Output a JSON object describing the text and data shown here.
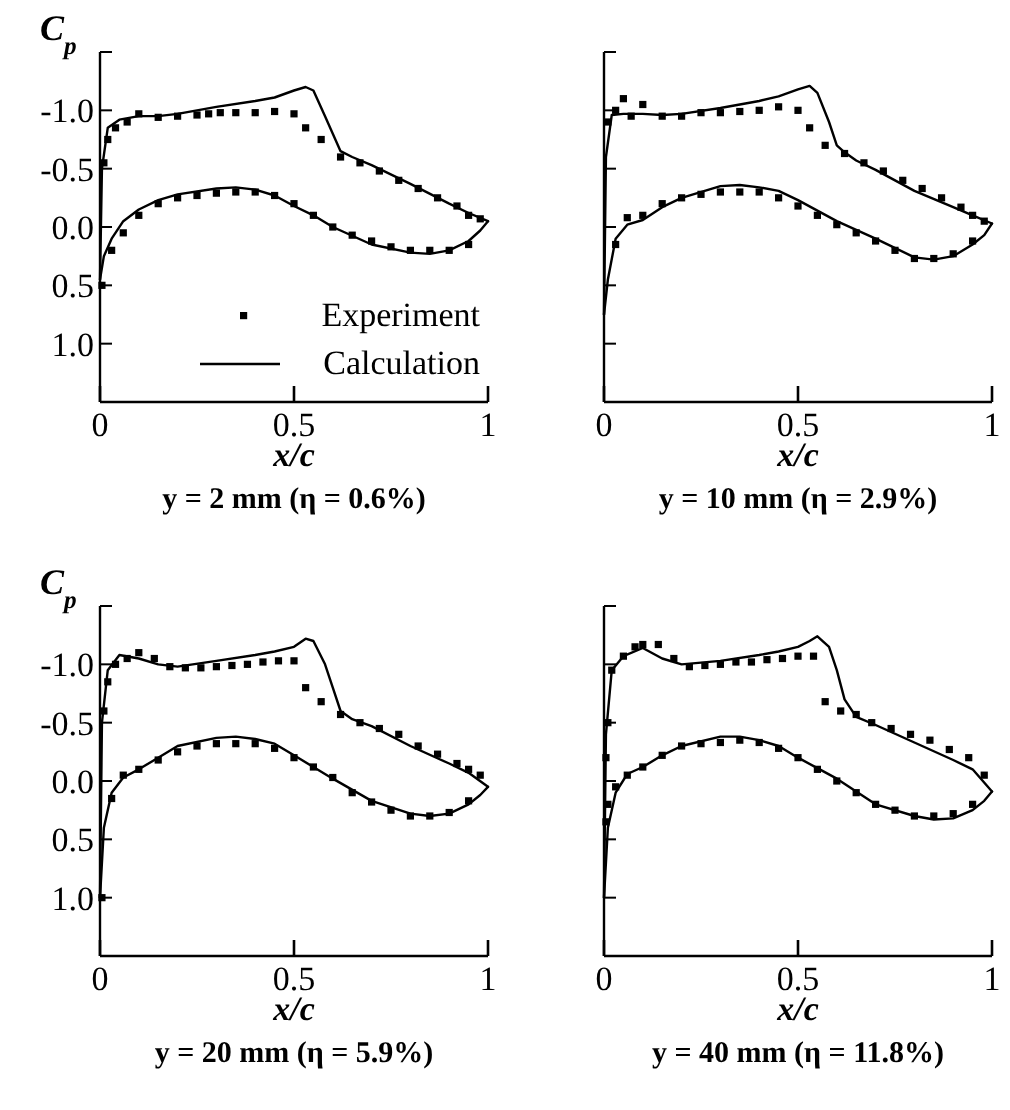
{
  "chart_data": [
    {
      "type": "line",
      "title": "y = 2 mm (η = 0.6%)",
      "xlabel": "x/c",
      "ylabel": "C$_{p}$",
      "xlim": [
        0,
        1
      ],
      "ylim": [
        1.5,
        -1.5
      ],
      "xticks": [
        0,
        0.5,
        1
      ],
      "yticks": [
        {
          "value": -1.5,
          "label": null
        },
        {
          "value": -1,
          "label": "-1.0"
        },
        {
          "value": -0.5,
          "label": "-0.5"
        },
        {
          "value": 0,
          "label": "0.0"
        },
        {
          "value": 0.5,
          "label": "0.5"
        },
        {
          "value": 1,
          "label": "1.0"
        }
      ],
      "legend": "bottom right",
      "series": [
        {
          "name": "Experiment",
          "type": "scatter",
          "marker": "square",
          "color": "#000000",
          "x": [
            0.01,
            0.02,
            0.04,
            0.07,
            0.1,
            0.15,
            0.2,
            0.25,
            0.28,
            0.31,
            0.35,
            0.4,
            0.45,
            0.5,
            0.53,
            0.57,
            0.62,
            0.67,
            0.72,
            0.77,
            0.82,
            0.87,
            0.92,
            0.95,
            0.98,
            0.005,
            0.03,
            0.06,
            0.1,
            0.15,
            0.2,
            0.25,
            0.3,
            0.35,
            0.4,
            0.45,
            0.5,
            0.55,
            0.6,
            0.65,
            0.7,
            0.75,
            0.8,
            0.85,
            0.9,
            0.95
          ],
          "values": [
            -0.55,
            -0.75,
            -0.85,
            -0.9,
            -0.97,
            -0.94,
            -0.95,
            -0.96,
            -0.97,
            -0.98,
            -0.98,
            -0.98,
            -0.99,
            -0.97,
            -0.85,
            -0.75,
            -0.6,
            -0.55,
            -0.48,
            -0.4,
            -0.33,
            -0.25,
            -0.18,
            -0.1,
            -0.07,
            0.5,
            0.2,
            0.05,
            -0.1,
            -0.2,
            -0.25,
            -0.27,
            -0.29,
            -0.3,
            -0.3,
            -0.27,
            -0.2,
            -0.1,
            0.0,
            0.07,
            0.12,
            0.17,
            0.2,
            0.2,
            0.2,
            0.15
          ]
        },
        {
          "name": "Calculation",
          "type": "line",
          "color": "#000000",
          "x": [
            0,
            0.005,
            0.02,
            0.05,
            0.1,
            0.15,
            0.2,
            0.3,
            0.4,
            0.45,
            0.5,
            0.53,
            0.55,
            0.58,
            0.6,
            0.62,
            0.65,
            0.7,
            0.8,
            0.9,
            0.95,
            1
          ],
          "values": [
            0.45,
            -0.5,
            -0.85,
            -0.92,
            -0.95,
            -0.95,
            -0.97,
            -1.03,
            -1.08,
            -1.11,
            -1.17,
            -1.2,
            -1.17,
            -0.95,
            -0.8,
            -0.65,
            -0.6,
            -0.53,
            -0.37,
            -0.2,
            -0.12,
            -0.05
          ]
        },
        {
          "type": "line",
          "color": "#000000",
          "x": [
            0,
            0.01,
            0.03,
            0.06,
            0.1,
            0.15,
            0.2,
            0.3,
            0.35,
            0.4,
            0.45,
            0.5,
            0.55,
            0.6,
            0.7,
            0.8,
            0.85,
            0.9,
            0.95,
            0.98,
            1
          ],
          "values": [
            0.45,
            0.25,
            0.1,
            -0.05,
            -0.15,
            -0.23,
            -0.28,
            -0.33,
            -0.34,
            -0.32,
            -0.27,
            -0.18,
            -0.1,
            0.0,
            0.15,
            0.22,
            0.23,
            0.2,
            0.12,
            0.03,
            -0.05
          ]
        }
      ]
    },
    {
      "type": "line",
      "title": "y = 10 mm (η = 2.9%)",
      "xlabel": "x/c",
      "xlim": [
        0,
        1
      ],
      "ylim": [
        1.5,
        -1.5
      ],
      "tick_labels": "x",
      "xticks": [
        0,
        0.5,
        1
      ],
      "yticks": [
        {
          "value": -1.5,
          "label": null
        },
        {
          "value": -1,
          "label": null
        },
        {
          "value": -0.5,
          "label": null
        },
        {
          "value": 0,
          "label": null
        },
        {
          "value": 0.5,
          "label": null
        },
        {
          "value": 1,
          "label": null
        }
      ],
      "series": [
        {
          "type": "scatter",
          "marker": "square",
          "color": "#000000",
          "x": [
            0.01,
            0.03,
            0.05,
            0.07,
            0.1,
            0.15,
            0.2,
            0.25,
            0.3,
            0.35,
            0.4,
            0.45,
            0.5,
            0.53,
            0.57,
            0.62,
            0.67,
            0.72,
            0.77,
            0.82,
            0.87,
            0.92,
            0.95,
            0.98,
            0.03,
            0.06,
            0.1,
            0.15,
            0.2,
            0.25,
            0.3,
            0.35,
            0.4,
            0.45,
            0.5,
            0.55,
            0.6,
            0.65,
            0.7,
            0.75,
            0.8,
            0.85,
            0.9,
            0.95
          ],
          "values": [
            -0.9,
            -1.0,
            -1.1,
            -0.95,
            -1.05,
            -0.95,
            -0.95,
            -0.98,
            -0.98,
            -0.99,
            -1.0,
            -1.03,
            -1.0,
            -0.85,
            -0.7,
            -0.63,
            -0.55,
            -0.48,
            -0.4,
            -0.33,
            -0.25,
            -0.17,
            -0.1,
            -0.05,
            0.15,
            -0.08,
            -0.1,
            -0.2,
            -0.25,
            -0.28,
            -0.3,
            -0.3,
            -0.3,
            -0.25,
            -0.18,
            -0.1,
            -0.02,
            0.05,
            0.12,
            0.2,
            0.27,
            0.27,
            0.23,
            0.12
          ]
        },
        {
          "type": "line",
          "color": "#000000",
          "x": [
            0,
            0.005,
            0.02,
            0.05,
            0.1,
            0.15,
            0.2,
            0.3,
            0.4,
            0.45,
            0.5,
            0.53,
            0.55,
            0.58,
            0.6,
            0.62,
            0.65,
            0.7,
            0.8,
            0.9,
            0.95,
            1
          ],
          "values": [
            0.75,
            -0.6,
            -0.96,
            -0.97,
            -0.97,
            -0.96,
            -0.97,
            -1.02,
            -1.08,
            -1.12,
            -1.18,
            -1.21,
            -1.15,
            -0.9,
            -0.7,
            -0.64,
            -0.57,
            -0.49,
            -0.31,
            -0.17,
            -0.1,
            -0.03
          ]
        },
        {
          "type": "line",
          "color": "#000000",
          "x": [
            0,
            0.01,
            0.03,
            0.06,
            0.1,
            0.15,
            0.2,
            0.3,
            0.35,
            0.4,
            0.45,
            0.5,
            0.55,
            0.6,
            0.7,
            0.8,
            0.85,
            0.9,
            0.95,
            0.98,
            1
          ],
          "values": [
            0.75,
            0.45,
            0.1,
            -0.02,
            -0.06,
            -0.17,
            -0.25,
            -0.35,
            -0.36,
            -0.34,
            -0.31,
            -0.23,
            -0.14,
            -0.05,
            0.1,
            0.26,
            0.28,
            0.25,
            0.15,
            0.07,
            -0.03
          ]
        }
      ]
    },
    {
      "type": "line",
      "title": "y = 20 mm (η = 5.9%)",
      "xlabel": "x/c",
      "ylabel": "C$_{p}$",
      "xlim": [
        0,
        1
      ],
      "ylim": [
        1.5,
        -1.5
      ],
      "xticks": [
        0,
        0.5,
        1
      ],
      "yticks": [
        {
          "value": -1.5,
          "label": null
        },
        {
          "value": -1,
          "label": "-1.0"
        },
        {
          "value": -0.5,
          "label": "-0.5"
        },
        {
          "value": 0,
          "label": "0.0"
        },
        {
          "value": 0.5,
          "label": "0.5"
        },
        {
          "value": 1,
          "label": "1.0"
        }
      ],
      "series": [
        {
          "type": "scatter",
          "marker": "square",
          "color": "#000000",
          "x": [
            0.01,
            0.02,
            0.04,
            0.07,
            0.1,
            0.14,
            0.18,
            0.22,
            0.26,
            0.3,
            0.34,
            0.38,
            0.42,
            0.46,
            0.5,
            0.53,
            0.57,
            0.62,
            0.67,
            0.72,
            0.77,
            0.82,
            0.87,
            0.92,
            0.95,
            0.98,
            0.005,
            0.03,
            0.06,
            0.1,
            0.15,
            0.2,
            0.25,
            0.3,
            0.35,
            0.4,
            0.45,
            0.5,
            0.55,
            0.6,
            0.65,
            0.7,
            0.75,
            0.8,
            0.85,
            0.9,
            0.95
          ],
          "values": [
            -0.6,
            -0.85,
            -1.0,
            -1.05,
            -1.1,
            -1.05,
            -0.98,
            -0.97,
            -0.97,
            -0.98,
            -0.99,
            -1.0,
            -1.02,
            -1.03,
            -1.03,
            -0.8,
            -0.68,
            -0.57,
            -0.5,
            -0.45,
            -0.4,
            -0.3,
            -0.23,
            -0.15,
            -0.1,
            -0.05,
            1.0,
            0.15,
            -0.05,
            -0.1,
            -0.18,
            -0.25,
            -0.3,
            -0.32,
            -0.32,
            -0.32,
            -0.28,
            -0.2,
            -0.12,
            -0.03,
            0.1,
            0.18,
            0.25,
            0.3,
            0.3,
            0.27,
            0.17
          ]
        },
        {
          "type": "line",
          "color": "#000000",
          "x": [
            0,
            0.005,
            0.02,
            0.05,
            0.1,
            0.15,
            0.2,
            0.3,
            0.4,
            0.45,
            0.5,
            0.53,
            0.55,
            0.58,
            0.6,
            0.62,
            0.65,
            0.7,
            0.8,
            0.9,
            0.95,
            1
          ],
          "values": [
            1.0,
            -0.5,
            -0.95,
            -1.08,
            -1.05,
            -1.0,
            -0.98,
            -1.03,
            -1.08,
            -1.11,
            -1.15,
            -1.22,
            -1.2,
            -1.0,
            -0.8,
            -0.6,
            -0.53,
            -0.47,
            -0.3,
            -0.15,
            -0.07,
            0.05
          ]
        },
        {
          "type": "line",
          "color": "#000000",
          "x": [
            0,
            0.01,
            0.03,
            0.06,
            0.1,
            0.15,
            0.2,
            0.3,
            0.35,
            0.4,
            0.45,
            0.5,
            0.55,
            0.6,
            0.7,
            0.8,
            0.85,
            0.9,
            0.95,
            0.98,
            1
          ],
          "values": [
            1.0,
            0.4,
            0.1,
            -0.03,
            -0.1,
            -0.2,
            -0.3,
            -0.37,
            -0.38,
            -0.36,
            -0.32,
            -0.22,
            -0.12,
            -0.02,
            0.17,
            0.28,
            0.3,
            0.28,
            0.2,
            0.12,
            0.05
          ]
        }
      ]
    },
    {
      "type": "line",
      "title": "y = 40 mm (η = 11.8%)",
      "xlabel": "x/c",
      "xlim": [
        0,
        1
      ],
      "ylim": [
        1.5,
        -1.5
      ],
      "tick_labels": "x",
      "xticks": [
        0,
        0.5,
        1
      ],
      "yticks": [
        {
          "value": -1.5,
          "label": null
        },
        {
          "value": -1,
          "label": null
        },
        {
          "value": -0.5,
          "label": null
        },
        {
          "value": 0,
          "label": null
        },
        {
          "value": 0.5,
          "label": null
        },
        {
          "value": 1,
          "label": null
        }
      ],
      "series": [
        {
          "type": "scatter",
          "marker": "square",
          "color": "#000000",
          "x": [
            0.005,
            0.01,
            0.02,
            0.05,
            0.08,
            0.1,
            0.14,
            0.18,
            0.22,
            0.26,
            0.3,
            0.34,
            0.38,
            0.42,
            0.46,
            0.5,
            0.54,
            0.57,
            0.61,
            0.65,
            0.69,
            0.74,
            0.79,
            0.84,
            0.89,
            0.94,
            0.98,
            0.005,
            0.01,
            0.03,
            0.06,
            0.1,
            0.15,
            0.2,
            0.25,
            0.3,
            0.35,
            0.4,
            0.45,
            0.5,
            0.55,
            0.6,
            0.65,
            0.7,
            0.75,
            0.8,
            0.85,
            0.9,
            0.95
          ],
          "values": [
            -0.2,
            -0.5,
            -0.95,
            -1.07,
            -1.15,
            -1.17,
            -1.17,
            -1.05,
            -0.98,
            -0.99,
            -1.0,
            -1.02,
            -1.02,
            -1.04,
            -1.05,
            -1.07,
            -1.07,
            -0.68,
            -0.6,
            -0.57,
            -0.5,
            -0.45,
            -0.4,
            -0.35,
            -0.27,
            -0.2,
            -0.05,
            0.35,
            0.2,
            0.05,
            -0.05,
            -0.12,
            -0.22,
            -0.3,
            -0.32,
            -0.33,
            -0.35,
            -0.33,
            -0.28,
            -0.2,
            -0.1,
            0.0,
            0.1,
            0.2,
            0.25,
            0.3,
            0.3,
            0.28,
            0.2
          ]
        },
        {
          "type": "line",
          "color": "#000000",
          "x": [
            0,
            0.005,
            0.02,
            0.05,
            0.1,
            0.15,
            0.2,
            0.3,
            0.4,
            0.45,
            0.5,
            0.53,
            0.55,
            0.58,
            0.6,
            0.62,
            0.65,
            0.7,
            0.8,
            0.9,
            0.95,
            1
          ],
          "values": [
            1.0,
            -0.4,
            -0.95,
            -1.07,
            -1.14,
            -1.05,
            -1.0,
            -1.03,
            -1.08,
            -1.11,
            -1.15,
            -1.2,
            -1.24,
            -1.15,
            -0.95,
            -0.7,
            -0.55,
            -0.48,
            -0.33,
            -0.18,
            -0.1,
            0.09
          ]
        },
        {
          "type": "line",
          "color": "#000000",
          "x": [
            0,
            0.01,
            0.03,
            0.06,
            0.1,
            0.15,
            0.2,
            0.3,
            0.35,
            0.4,
            0.45,
            0.5,
            0.55,
            0.6,
            0.7,
            0.8,
            0.85,
            0.9,
            0.95,
            0.98,
            1
          ],
          "values": [
            1.0,
            0.4,
            0.1,
            -0.06,
            -0.12,
            -0.22,
            -0.3,
            -0.38,
            -0.38,
            -0.35,
            -0.3,
            -0.2,
            -0.11,
            -0.02,
            0.2,
            0.3,
            0.33,
            0.32,
            0.25,
            0.17,
            0.09
          ]
        }
      ]
    }
  ]
}
